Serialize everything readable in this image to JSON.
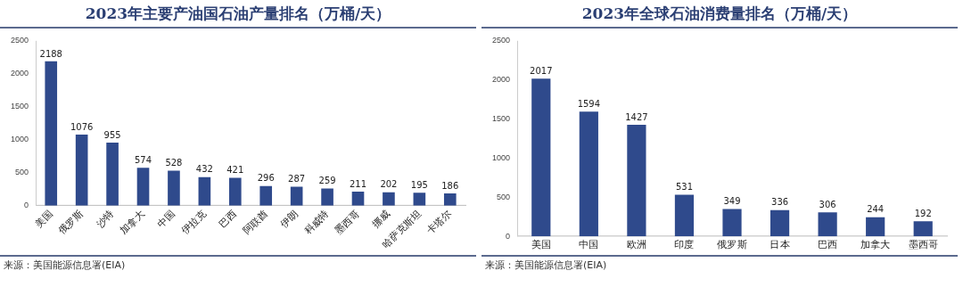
{
  "chart_data": [
    {
      "type": "bar",
      "title": "2023年主要产油国石油产量排名（万桶/天）",
      "categories": [
        "美国",
        "俄罗斯",
        "沙特",
        "加拿大",
        "中国",
        "伊拉克",
        "巴西",
        "阿联酋",
        "伊朗",
        "科威特",
        "墨西哥",
        "挪威",
        "哈萨克斯坦",
        "卡塔尔"
      ],
      "values": [
        2188,
        1076,
        955,
        574,
        528,
        432,
        421,
        296,
        287,
        259,
        211,
        202,
        195,
        186
      ],
      "color": "#2f4a8c",
      "ylim": [
        0,
        2500
      ],
      "yticks": [
        0,
        500,
        1000,
        1500,
        2000,
        2500
      ],
      "grid": false,
      "legend": false,
      "data_labels": true,
      "annotations": [
        "来源：美国能源信息署(EIA)"
      ]
    },
    {
      "type": "bar",
      "title": "2023年全球石油消费量排名（万桶/天）",
      "categories": [
        "美国",
        "中国",
        "欧洲",
        "印度",
        "俄罗斯",
        "日本",
        "巴西",
        "加拿大",
        "墨西哥"
      ],
      "values": [
        2017,
        1594,
        1427,
        531,
        349,
        336,
        306,
        244,
        192
      ],
      "color": "#2f4a8c",
      "ylim": [
        0,
        2500
      ],
      "yticks": [
        0,
        500,
        1000,
        1500,
        2000,
        2500
      ],
      "grid": false,
      "legend": false,
      "data_labels": true,
      "annotations": [
        "来源：美国能源信息署(EIA)"
      ]
    }
  ]
}
